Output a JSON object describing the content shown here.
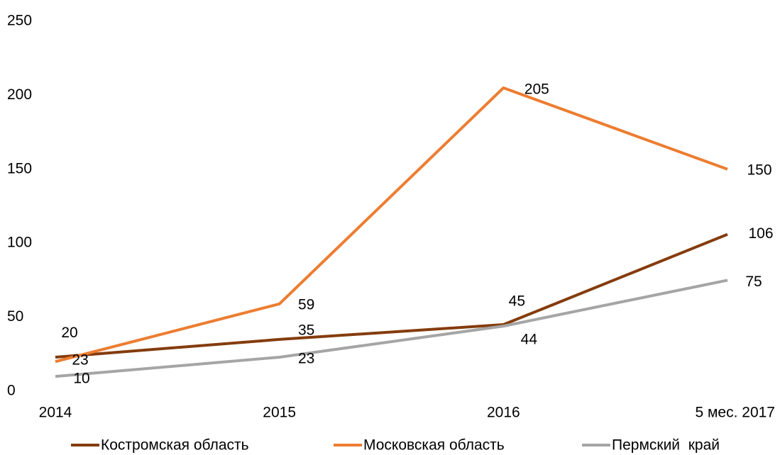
{
  "chart_data": {
    "type": "line",
    "categories": [
      "2014",
      "2015",
      "2016",
      "5 мес. 2017"
    ],
    "series": [
      {
        "name": "Костромская область",
        "color": "#843c0c",
        "values": [
          23,
          35,
          45,
          106
        ]
      },
      {
        "name": "Московская область",
        "color": "#ed7d31",
        "values": [
          20,
          59,
          205,
          150
        ]
      },
      {
        "name": "Пермский  край",
        "color": "#a5a5a5",
        "values": [
          10,
          23,
          44,
          75
        ]
      }
    ],
    "ylim": [
      0,
      250
    ],
    "yticks": [
      0,
      50,
      100,
      150,
      200,
      250
    ],
    "grid": false,
    "legend": "bottom"
  }
}
